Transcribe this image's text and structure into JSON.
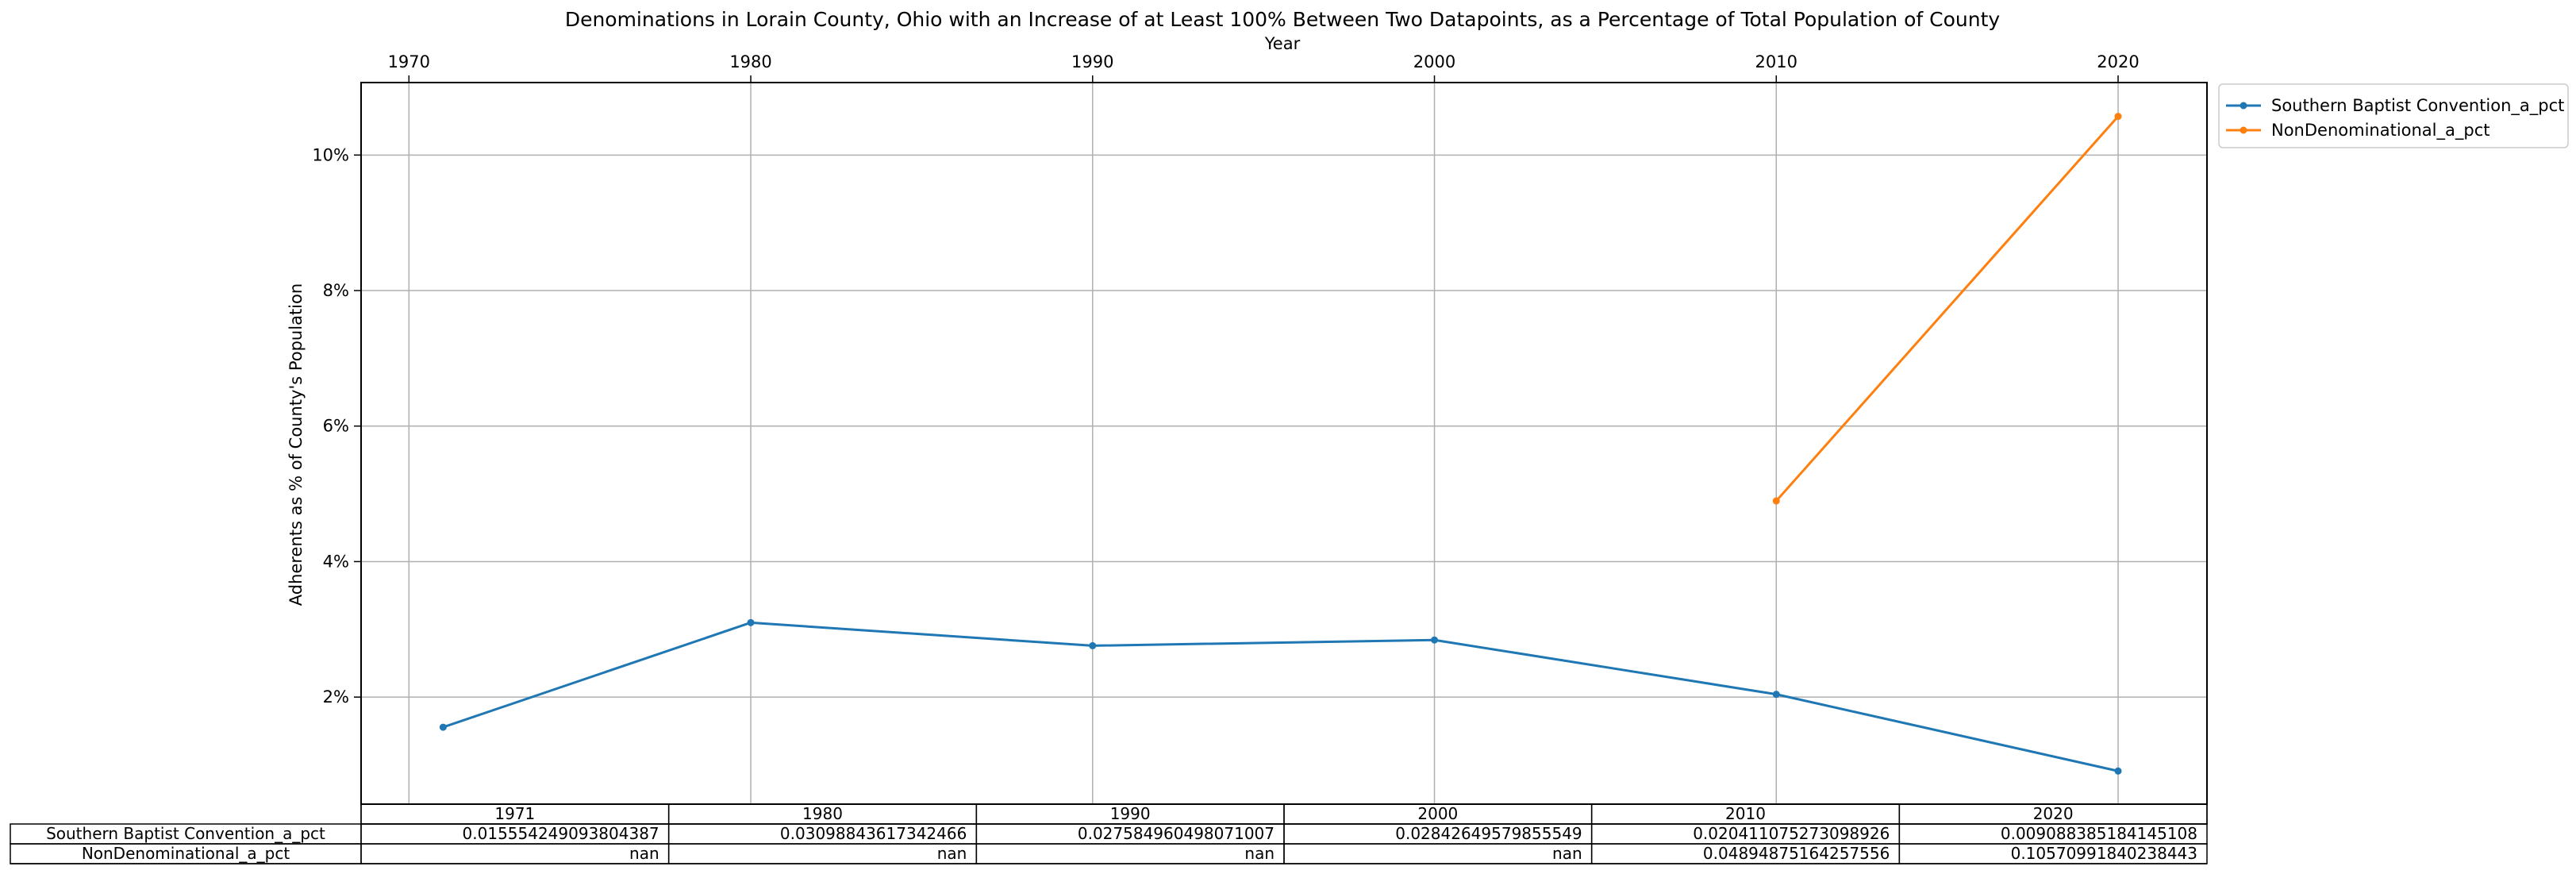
{
  "chart_data": {
    "type": "line",
    "title": "Denominations in Lorain County, Ohio with an Increase of at Least 100% Between Two Datapoints, as a Percentage of Total Population of County",
    "xlabel": "Year",
    "ylabel": "Adherents as % of County's Population",
    "x_ticks": [
      1970,
      1980,
      1990,
      2000,
      2010,
      2020
    ],
    "x_tick_labels": [
      "1970",
      "1980",
      "1990",
      "2000",
      "2010",
      "2020"
    ],
    "y_ticks": [
      2,
      4,
      6,
      8,
      10
    ],
    "y_tick_labels": [
      "2%",
      "4%",
      "6%",
      "8%",
      "10%"
    ],
    "xlim": [
      1968.6,
      2022.6
    ],
    "ylim": [
      0.42,
      11.07
    ],
    "x_axis_position": "top",
    "grid": true,
    "legend_position": "outside-top-right",
    "series": [
      {
        "name": "Southern Baptist Convention_a_pct",
        "color": "#1f77b4",
        "x": [
          1971,
          1980,
          1990,
          2000,
          2010,
          2020
        ],
        "values": [
          1.5554249093804386,
          3.098843617342466,
          2.7584960498071007,
          2.842649579855549,
          2.0411075273098924,
          0.9088385184145108
        ]
      },
      {
        "name": "NonDenominational_a_pct",
        "color": "#ff7f0e",
        "x": [
          2010,
          2020
        ],
        "values": [
          4.894875164257556,
          10.570991840238444
        ]
      }
    ],
    "table": {
      "columns": [
        "1971",
        "1980",
        "1990",
        "2000",
        "2010",
        "2020"
      ],
      "rows": [
        {
          "label": "Southern Baptist Convention_a_pct",
          "cells": [
            "0.015554249093804387",
            "0.03098843617342466",
            "0.027584960498071007",
            "0.02842649579855549",
            "0.020411075273098926",
            "0.009088385184145108"
          ]
        },
        {
          "label": "NonDenominational_a_pct",
          "cells": [
            "nan",
            "nan",
            "nan",
            "nan",
            "0.04894875164257556",
            "0.10570991840238443"
          ]
        }
      ]
    }
  }
}
